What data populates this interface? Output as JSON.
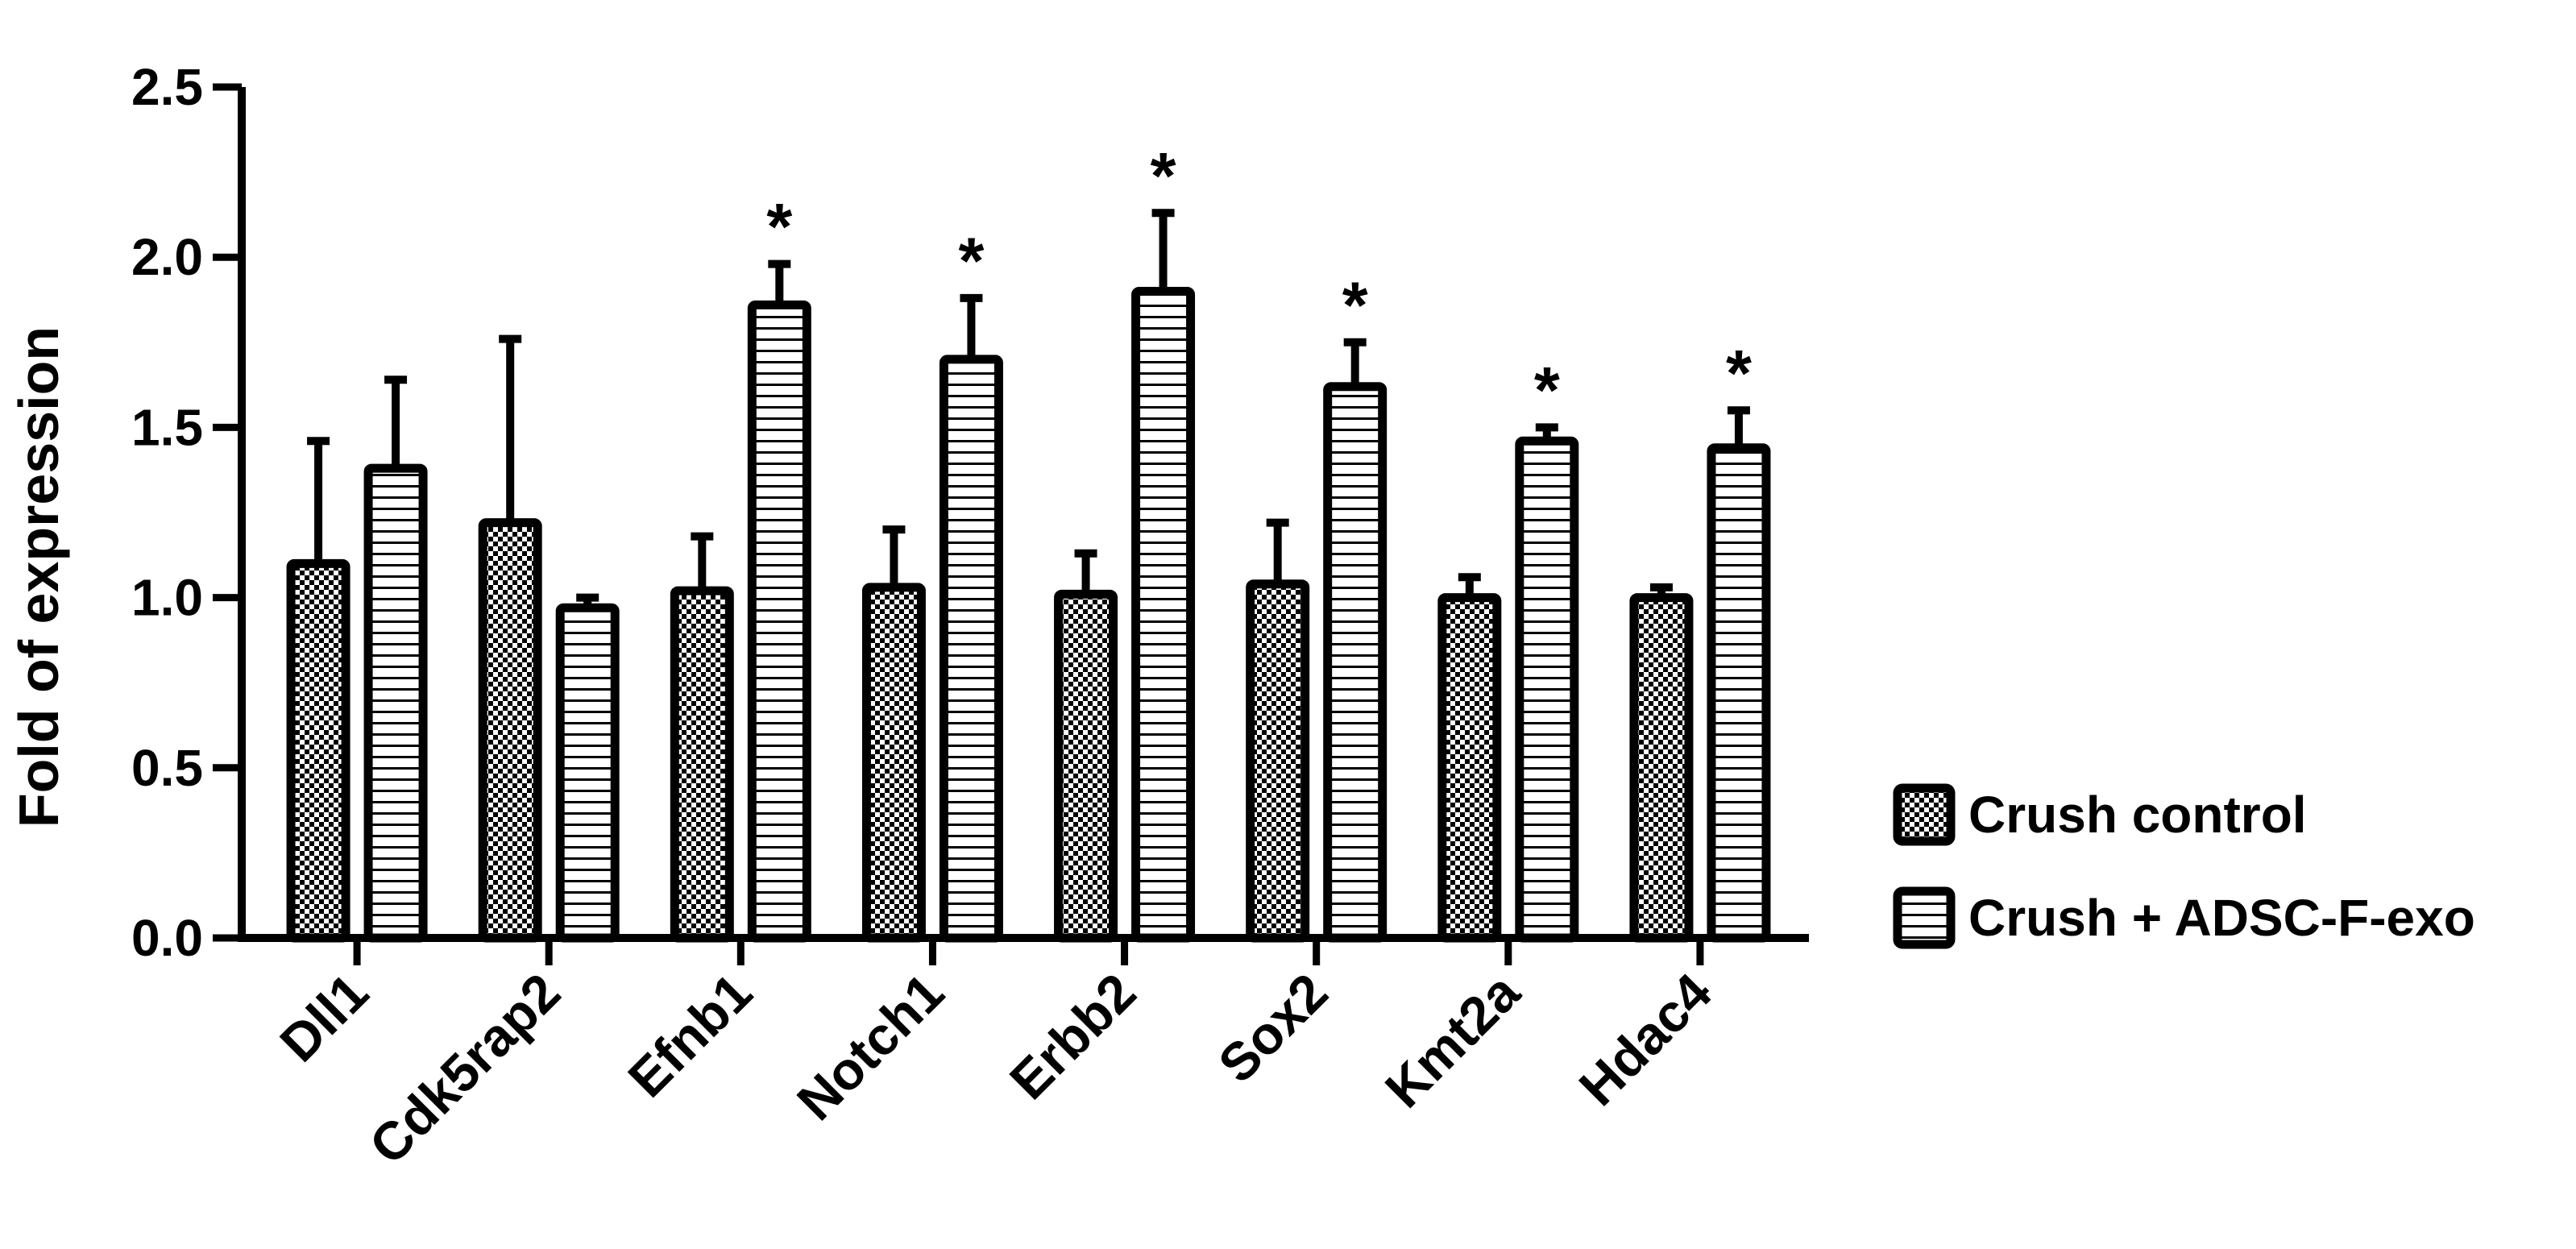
{
  "chart_data": {
    "type": "bar",
    "title": "",
    "xlabel": "",
    "ylabel": "Fold of expression",
    "ylim": [
      0,
      2.5
    ],
    "yticks": [
      "0.0",
      "0.5",
      "1.0",
      "1.5",
      "2.0",
      "2.5"
    ],
    "grid": false,
    "legend_position": "right",
    "categories": [
      "Dll1",
      "Cdk5rap2",
      "Efnb1",
      "Notch1",
      "Erbb2",
      "Sox2",
      "Kmt2a",
      "Hdac4"
    ],
    "series": [
      {
        "name": "Crush control",
        "pattern": "checker",
        "values": [
          1.1,
          1.22,
          1.02,
          1.03,
          1.01,
          1.04,
          1.0,
          1.0
        ],
        "errors": [
          0.36,
          0.54,
          0.16,
          0.17,
          0.12,
          0.18,
          0.06,
          0.03
        ],
        "significant": [
          false,
          false,
          false,
          false,
          false,
          false,
          false,
          false
        ]
      },
      {
        "name": "Crush + ADSC-F-exo",
        "pattern": "horizontal-lines",
        "values": [
          1.38,
          0.97,
          1.86,
          1.7,
          1.9,
          1.62,
          1.46,
          1.44
        ],
        "errors": [
          0.26,
          0.03,
          0.12,
          0.18,
          0.23,
          0.13,
          0.04,
          0.11
        ],
        "significant": [
          false,
          false,
          true,
          true,
          true,
          true,
          true,
          true
        ]
      }
    ],
    "annotations": {
      "significance_marker": "*"
    },
    "colors": {
      "stroke": "#000000",
      "fill": "#ffffff",
      "marker": "#333333"
    }
  }
}
